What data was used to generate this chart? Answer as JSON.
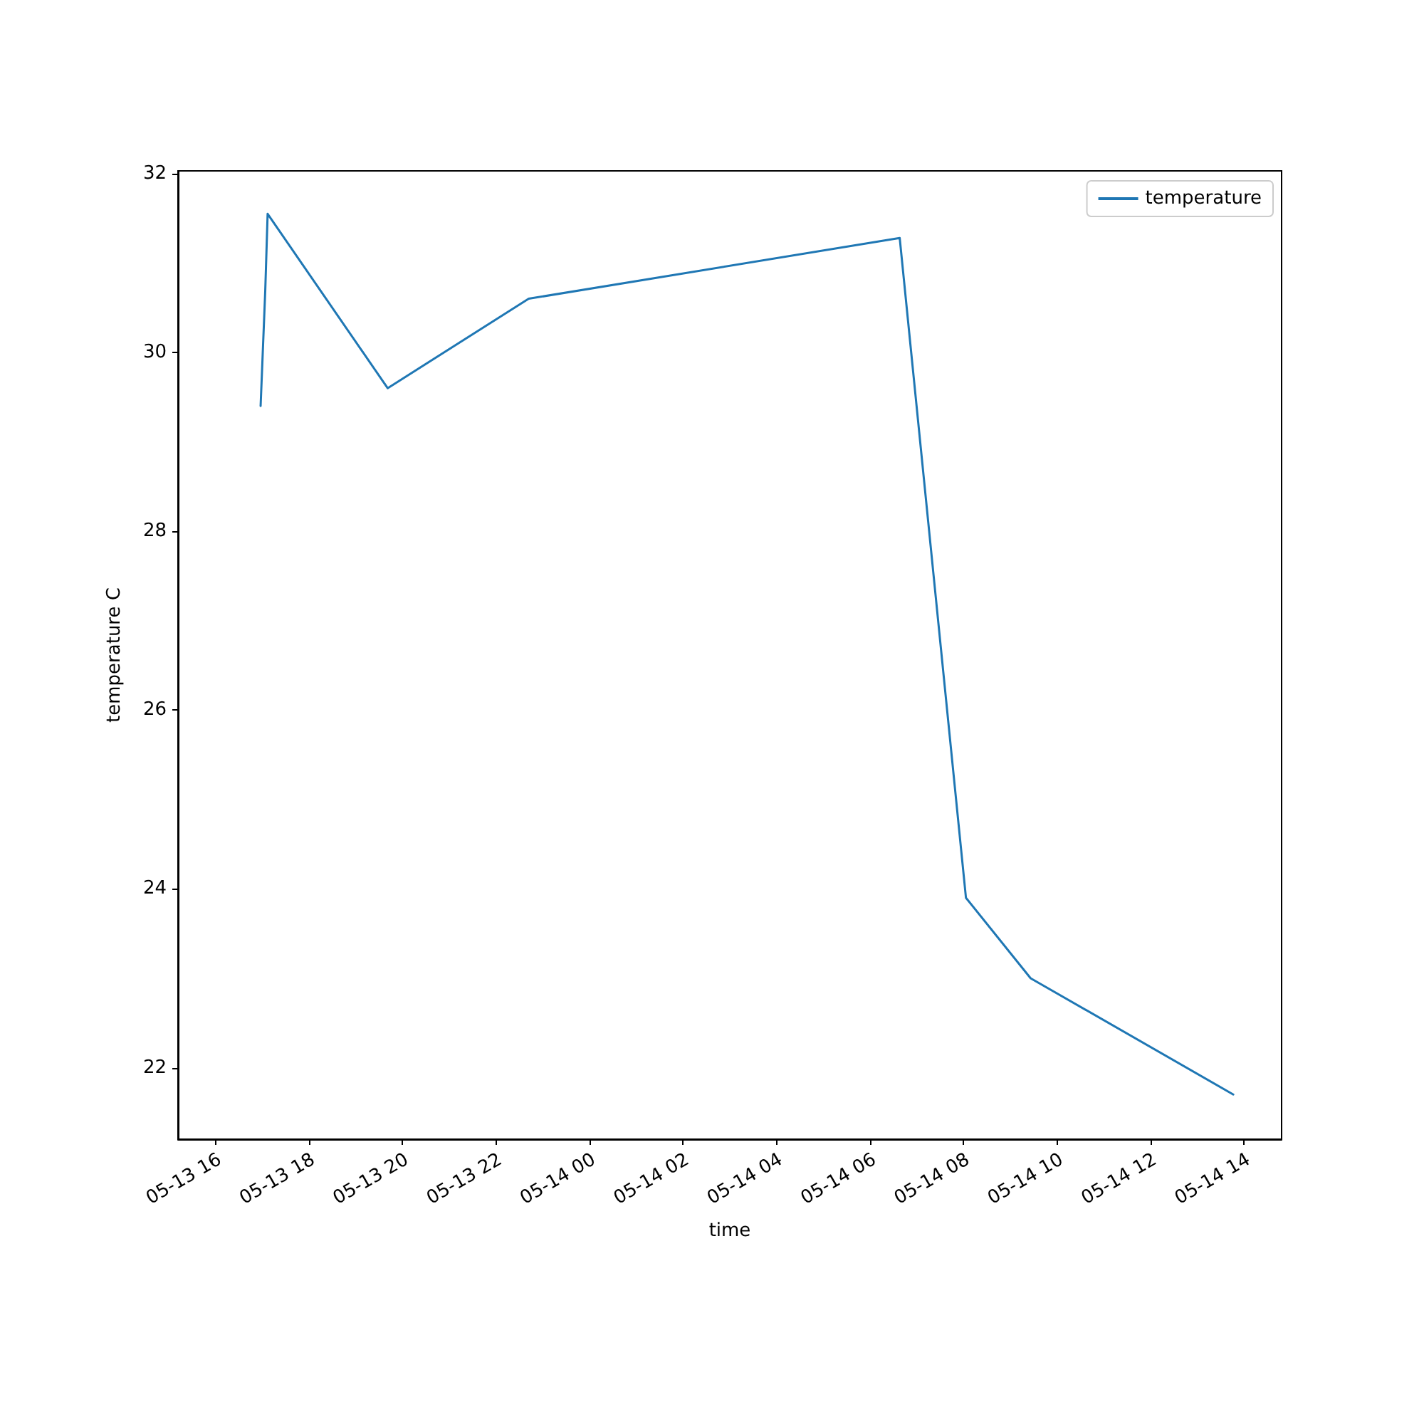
{
  "chart_data": {
    "type": "line",
    "xlabel": "time",
    "ylabel": "temperature C",
    "x": [
      "--05-13T16:58",
      "--05-13T17:04",
      "--05-13T17:07",
      "--05-13T19:41",
      "--05-13T22:42",
      "--05-14T06:38",
      "--05-14T08:03",
      "--05-14T09:26",
      "--05-14T13:46"
    ],
    "series": [
      {
        "name": "temperature",
        "color": "#1f77b4",
        "values": [
          29.4,
          30.7,
          31.55,
          29.6,
          30.6,
          31.28,
          23.9,
          23.0,
          21.7
        ]
      }
    ],
    "xlim": [
      "--05-13T15:12",
      "--05-14T14:48"
    ],
    "xticks": [
      {
        "value": "--05-13T16:00",
        "label": "05-13 16"
      },
      {
        "value": "--05-13T18:00",
        "label": "05-13 18"
      },
      {
        "value": "--05-13T20:00",
        "label": "05-13 20"
      },
      {
        "value": "--05-13T22:00",
        "label": "05-13 22"
      },
      {
        "value": "--05-14T00:00",
        "label": "05-14 00"
      },
      {
        "value": "--05-14T02:00",
        "label": "05-14 02"
      },
      {
        "value": "--05-14T04:00",
        "label": "05-14 04"
      },
      {
        "value": "--05-14T06:00",
        "label": "05-14 06"
      },
      {
        "value": "--05-14T08:00",
        "label": "05-14 08"
      },
      {
        "value": "--05-14T10:00",
        "label": "05-14 10"
      },
      {
        "value": "--05-14T12:00",
        "label": "05-14 12"
      },
      {
        "value": "--05-14T14:00",
        "label": "05-14 14"
      }
    ],
    "ylim": [
      21.2,
      32.03
    ],
    "yticks": [
      22,
      24,
      26,
      28,
      30,
      32
    ],
    "grid": false,
    "legend": "top right",
    "marker": "none",
    "line_style": "solid"
  }
}
